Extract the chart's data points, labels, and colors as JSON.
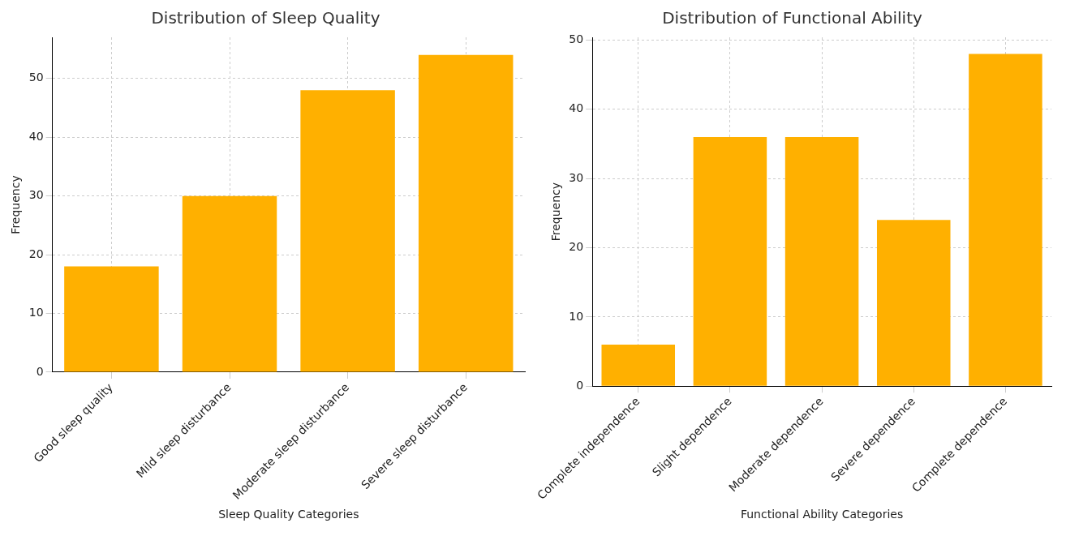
{
  "chart_data": [
    {
      "type": "bar",
      "title": "Distribution of Sleep Quality",
      "xlabel": "Sleep Quality Categories",
      "ylabel": "Frequency",
      "categories": [
        "Good sleep quality",
        "Mild sleep disturbance",
        "Moderate sleep disturbance",
        "Severe sleep disturbance"
      ],
      "values": [
        18,
        30,
        48,
        54
      ],
      "color": "#ffb000",
      "ylim": [
        0,
        57
      ],
      "yticks": [
        0,
        10,
        20,
        30,
        40,
        50
      ],
      "grid": true
    },
    {
      "type": "bar",
      "title": "Distribution of Functional Ability",
      "xlabel": "Functional Ability Categories",
      "ylabel": "Frequency",
      "categories": [
        "Complete independence",
        "Slight dependence",
        "Moderate dependence",
        "Severe dependence",
        "Complete dependence"
      ],
      "values": [
        6,
        36,
        36,
        24,
        48
      ],
      "color": "#ffb000",
      "ylim": [
        0,
        50.4
      ],
      "yticks": [
        0,
        10,
        20,
        30,
        40,
        50
      ],
      "grid": true
    }
  ]
}
